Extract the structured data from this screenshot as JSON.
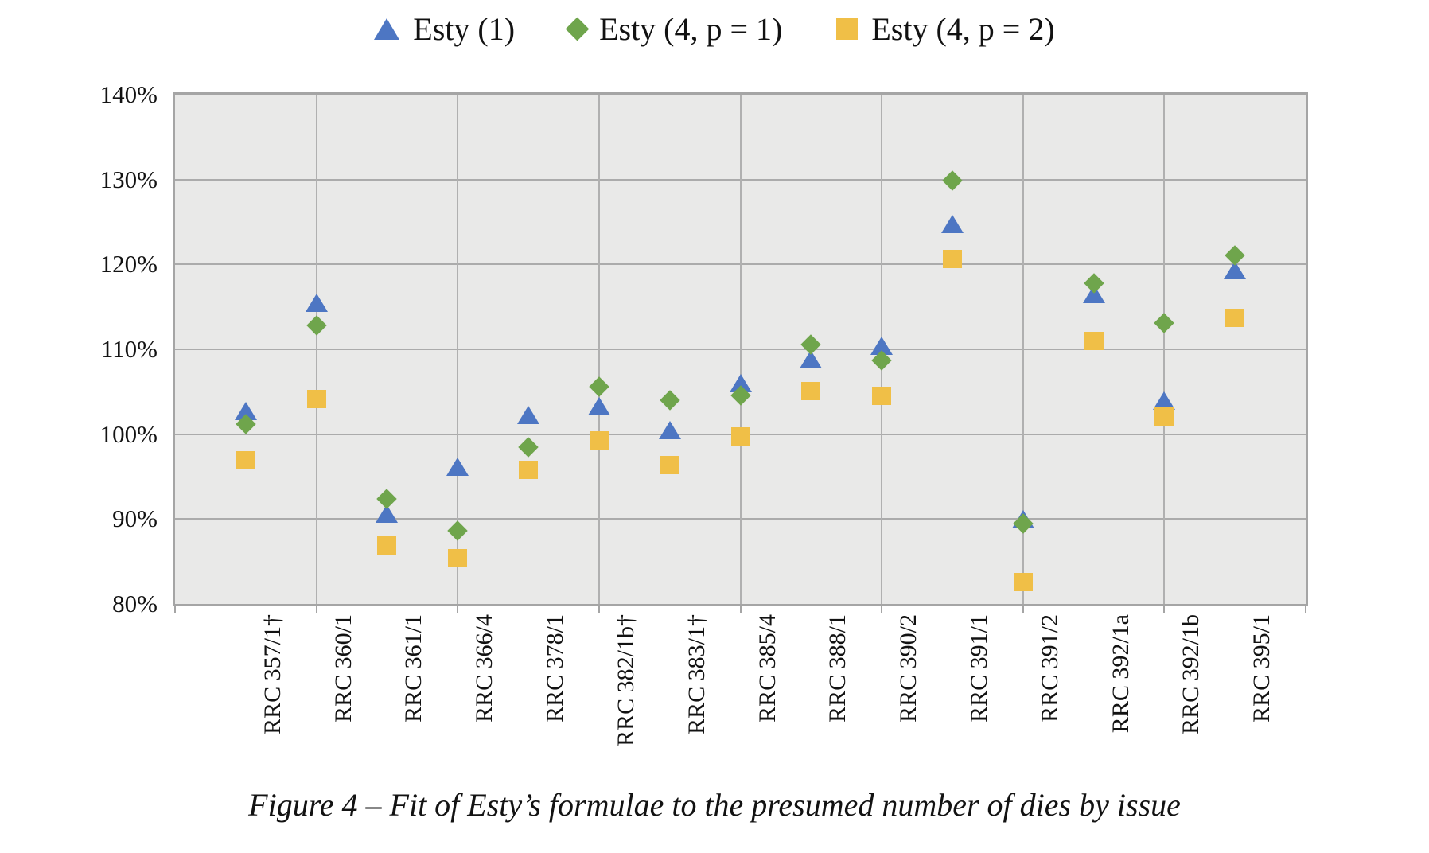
{
  "figure": {
    "caption": "Figure 4 – Fit of Esty’s formulae to the presumed number of dies by issue"
  },
  "legend": {
    "items": [
      {
        "label": "Esty (1)",
        "marker": "triangle",
        "color": "#4d76c3"
      },
      {
        "label": "Esty (4, p = 1)",
        "marker": "diamond",
        "color": "#6fa54c"
      },
      {
        "label": "Esty (4, p = 2)",
        "marker": "square",
        "color": "#f0bf47"
      }
    ]
  },
  "y_axis": {
    "min": 80,
    "max": 140,
    "step": 10,
    "tick_labels": [
      "140%",
      "130%",
      "120%",
      "110%",
      "100%",
      "90%",
      "80%"
    ]
  },
  "chart_data": {
    "type": "scatter",
    "title": "Figure 4 – Fit of Esty’s formulae to the presumed number of dies by issue",
    "xlabel": "",
    "ylabel": "",
    "ylim": [
      80,
      140
    ],
    "grid": "both",
    "legend_position": "top",
    "categories": [
      "RRC 357/1†",
      "RRC 360/1",
      "RRC 361/1",
      "RRC 366/4",
      "RRC 378/1",
      "RRC 382/1b†",
      "RRC 383/1†",
      "RRC 385/4",
      "RRC 388/1",
      "RRC 390/2",
      "RRC 391/1",
      "RRC 391/2",
      "RRC 392/1a",
      "RRC 392/1b",
      "RRC 395/1"
    ],
    "series": [
      {
        "name": "Esty (1)",
        "marker": "triangle",
        "color": "#4d76c3",
        "values": [
          102.7,
          115.5,
          90.6,
          96.2,
          102.3,
          103.3,
          100.5,
          106.0,
          108.8,
          110.4,
          124.8,
          90.0,
          116.5,
          104.0,
          119.3
        ]
      },
      {
        "name": "Esty (4, p = 1)",
        "marker": "diamond",
        "color": "#6fa54c",
        "values": [
          101.2,
          112.8,
          92.4,
          88.6,
          98.5,
          105.6,
          104.0,
          104.6,
          110.6,
          108.7,
          129.9,
          89.5,
          117.8,
          113.1,
          121.1
        ]
      },
      {
        "name": "Esty (4, p = 2)",
        "marker": "square",
        "color": "#f0bf47",
        "values": [
          96.9,
          104.1,
          86.9,
          85.4,
          95.8,
          99.3,
          96.4,
          99.7,
          105.1,
          104.5,
          120.6,
          82.6,
          111.0,
          102.1,
          113.7
        ]
      }
    ]
  }
}
